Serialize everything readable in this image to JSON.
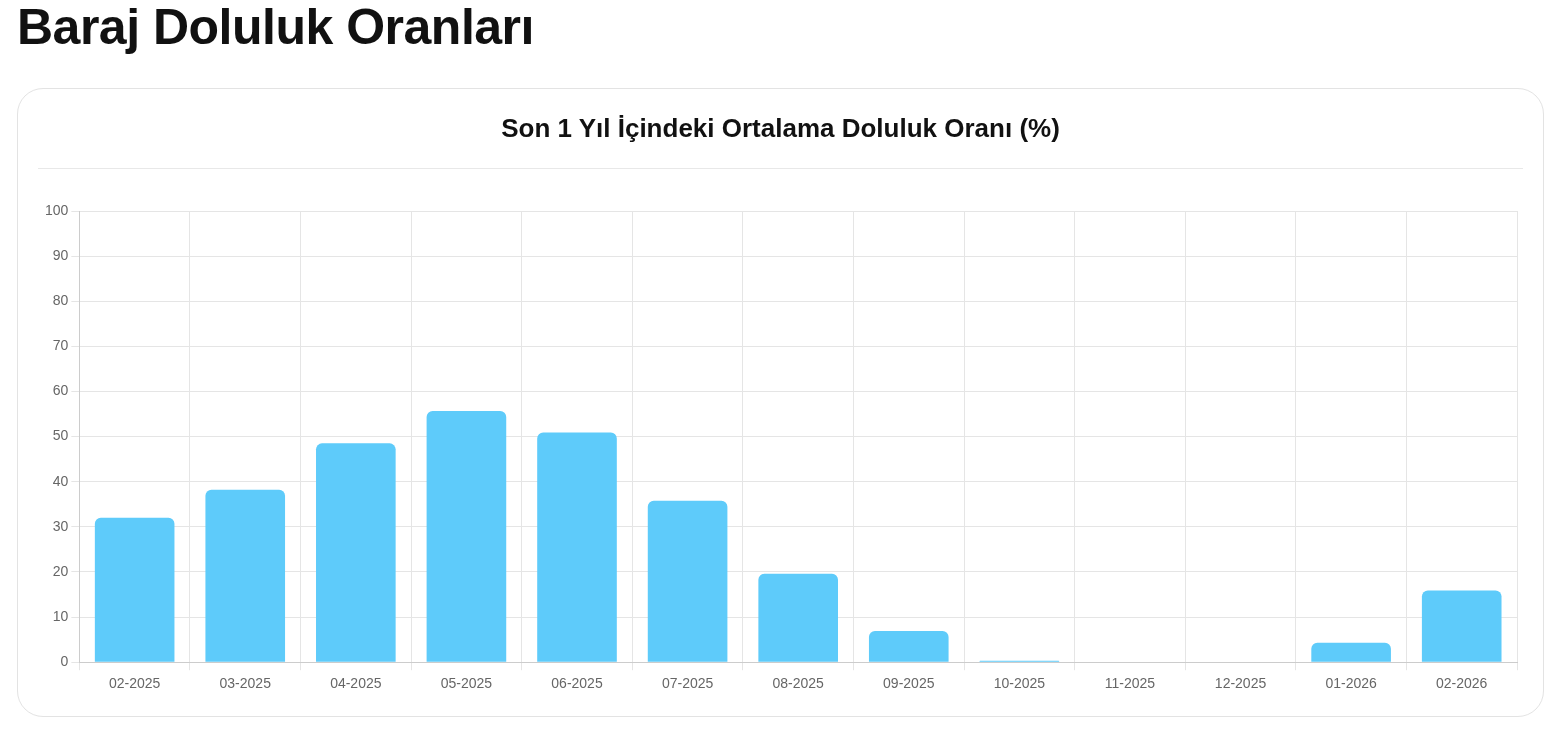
{
  "chart_data": {
    "type": "bar",
    "title": "Baraj Doluluk Oranları",
    "subtitle": "Son 1 Yıl İçindeki Ortalama Doluluk Oranı (%)",
    "categories": [
      "02-2025",
      "03-2025",
      "04-2025",
      "05-2025",
      "06-2025",
      "07-2025",
      "08-2025",
      "09-2025",
      "10-2025",
      "11-2025",
      "12-2025",
      "01-2026",
      "02-2026"
    ],
    "values": [
      32,
      38.2,
      48.5,
      55.7,
      50.9,
      35.8,
      19.6,
      6.9,
      0.3,
      0,
      0,
      4.3,
      15.9
    ],
    "color": "#5ecbfa",
    "ylim": [
      0,
      100
    ],
    "yticks": [
      0,
      10,
      20,
      30,
      40,
      50,
      60,
      70,
      80,
      90,
      100
    ],
    "grid": true
  }
}
